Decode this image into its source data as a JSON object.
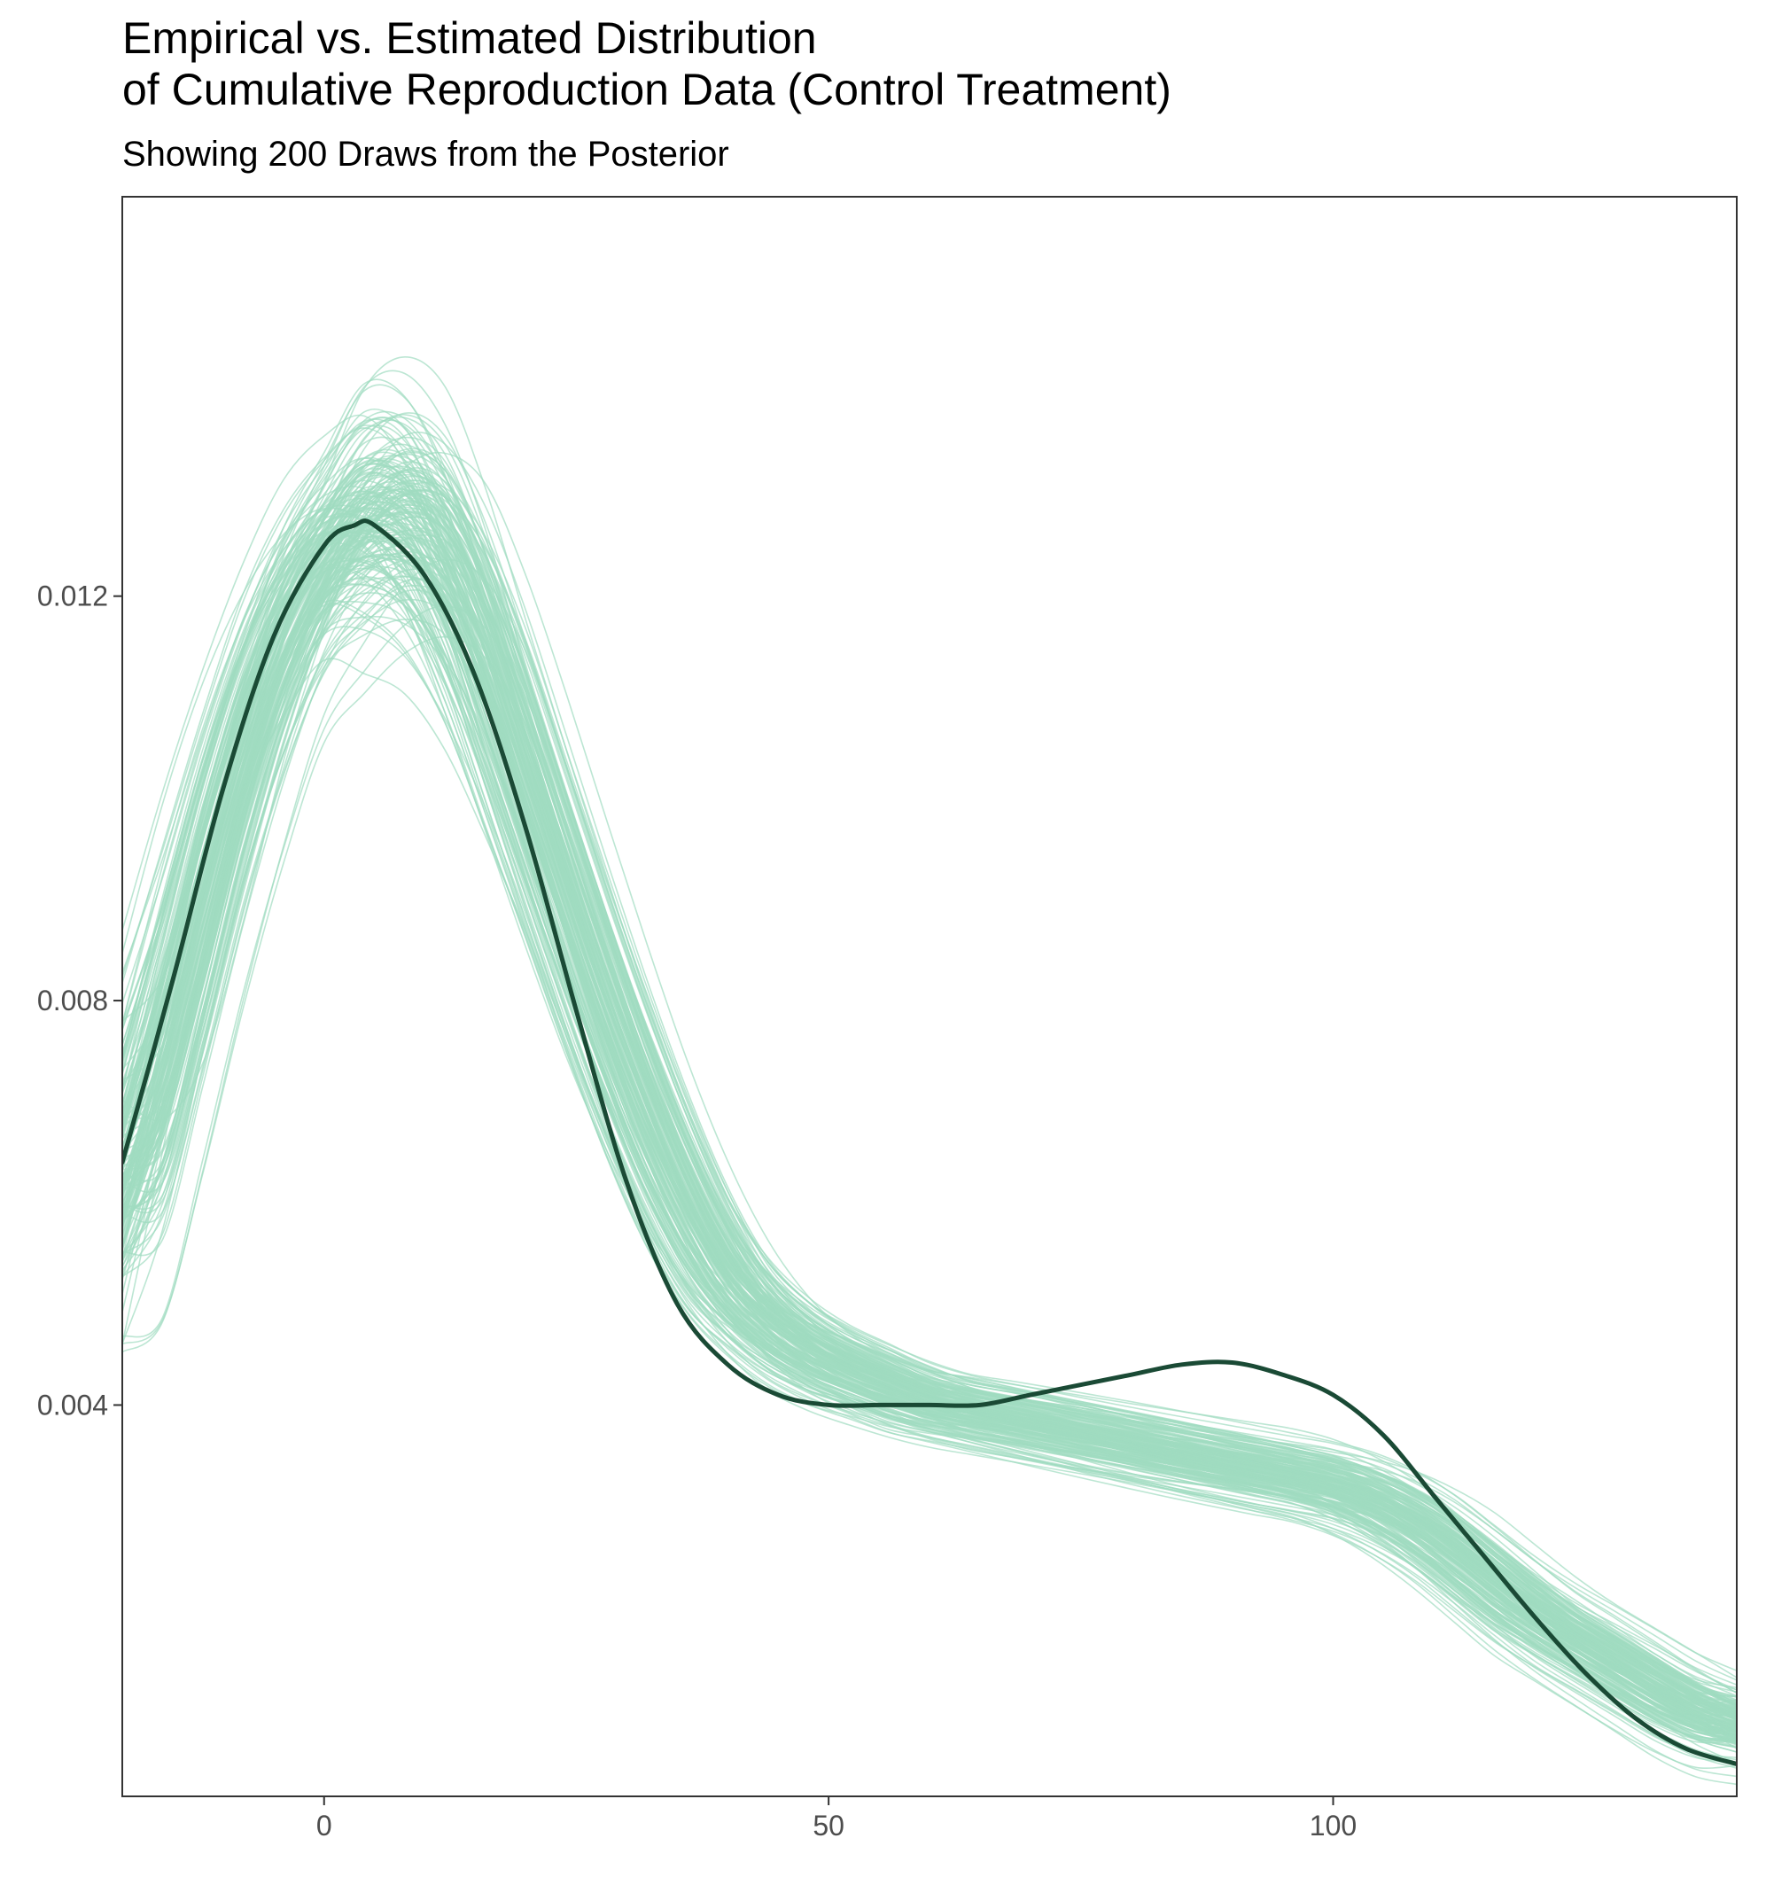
{
  "chart_data": {
    "type": "line",
    "title": [
      "Empirical vs. Estimated Distribution",
      "of Cumulative Reproduction Data (Control Treatment)"
    ],
    "subtitle": "Showing 200 Draws from the Posterior",
    "xlabel": "",
    "ylabel": "",
    "xlim": [
      -20,
      140
    ],
    "ylim": [
      0.00013,
      0.01595
    ],
    "x_ticks": [
      0,
      50,
      100
    ],
    "x_tick_labels": [
      "0",
      "50",
      "100"
    ],
    "y_ticks": [
      0.004,
      0.008,
      0.012
    ],
    "y_tick_labels": [
      "0.004",
      "0.008",
      "0.012"
    ],
    "grid": false,
    "legend": "none",
    "series": [
      {
        "role": "empirical",
        "color": "#1a4a35",
        "points": [
          [
            -20,
            0.0064
          ],
          [
            -15,
            0.0082
          ],
          [
            -10,
            0.0101
          ],
          [
            -5,
            0.0116
          ],
          [
            0,
            0.0125
          ],
          [
            3,
            0.0127
          ],
          [
            5,
            0.0127
          ],
          [
            10,
            0.0122
          ],
          [
            15,
            0.0112
          ],
          [
            20,
            0.0097
          ],
          [
            25,
            0.0079
          ],
          [
            30,
            0.0062
          ],
          [
            35,
            0.005
          ],
          [
            40,
            0.0044
          ],
          [
            45,
            0.0041
          ],
          [
            50,
            0.004
          ],
          [
            55,
            0.004
          ],
          [
            60,
            0.004
          ],
          [
            65,
            0.004
          ],
          [
            70,
            0.0041
          ],
          [
            75,
            0.0042
          ],
          [
            80,
            0.0043
          ],
          [
            85,
            0.0044
          ],
          [
            90,
            0.00442
          ],
          [
            95,
            0.0043
          ],
          [
            100,
            0.0041
          ],
          [
            105,
            0.0037
          ],
          [
            110,
            0.0031
          ],
          [
            115,
            0.0025
          ],
          [
            120,
            0.0019
          ],
          [
            125,
            0.00135
          ],
          [
            130,
            0.0009
          ],
          [
            135,
            0.0006
          ],
          [
            140,
            0.00045
          ]
        ]
      },
      {
        "role": "posterior_draws",
        "color": "#9fdcc1",
        "count": 200,
        "center_points": [
          [
            -20,
            0.006
          ],
          [
            -15,
            0.0078
          ],
          [
            -10,
            0.0098
          ],
          [
            -5,
            0.0114
          ],
          [
            0,
            0.0124
          ],
          [
            5,
            0.0129
          ],
          [
            10,
            0.0127
          ],
          [
            15,
            0.0117
          ],
          [
            20,
            0.0102
          ],
          [
            25,
            0.0087
          ],
          [
            30,
            0.0073
          ],
          [
            35,
            0.0061
          ],
          [
            40,
            0.0052
          ],
          [
            45,
            0.0047
          ],
          [
            50,
            0.0044
          ],
          [
            55,
            0.0042
          ],
          [
            60,
            0.004
          ],
          [
            65,
            0.0039
          ],
          [
            70,
            0.0038
          ],
          [
            75,
            0.0037
          ],
          [
            80,
            0.0036
          ],
          [
            85,
            0.0035
          ],
          [
            90,
            0.0034
          ],
          [
            95,
            0.0033
          ],
          [
            100,
            0.0032
          ],
          [
            105,
            0.003
          ],
          [
            110,
            0.0027
          ],
          [
            115,
            0.0023
          ],
          [
            120,
            0.0019
          ],
          [
            125,
            0.0016
          ],
          [
            130,
            0.0013
          ],
          [
            135,
            0.001
          ],
          [
            140,
            0.0008
          ]
        ],
        "spread_points": [
          [
            -20,
            0.0011
          ],
          [
            -10,
            0.0006
          ],
          [
            0,
            0.0007
          ],
          [
            5,
            0.001
          ],
          [
            10,
            0.001
          ],
          [
            20,
            0.0007
          ],
          [
            30,
            0.0006
          ],
          [
            40,
            0.0004
          ],
          [
            60,
            0.0003
          ],
          [
            80,
            0.0003
          ],
          [
            100,
            0.0003
          ],
          [
            120,
            0.0003
          ],
          [
            140,
            0.0003
          ]
        ]
      }
    ]
  }
}
